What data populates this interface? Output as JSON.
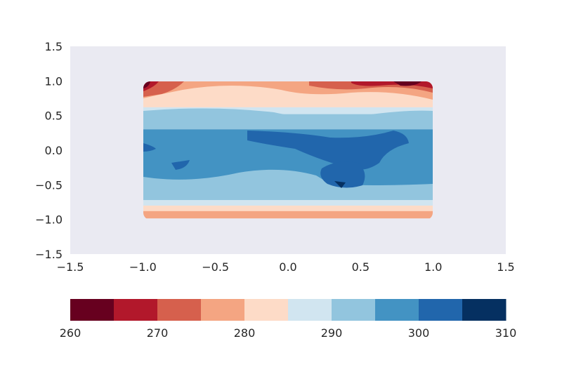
{
  "chart_data": {
    "type": "contourf",
    "title": "",
    "xlabel": "",
    "ylabel": "",
    "xlim": [
      -1.5,
      1.5
    ],
    "ylim": [
      -1.5,
      1.5
    ],
    "xticks": [
      "−1.5",
      "−1.0",
      "−0.5",
      "0.0",
      "0.5",
      "1.0",
      "1.5"
    ],
    "yticks": [
      "−1.5",
      "−1.0",
      "−0.5",
      "0.0",
      "0.5",
      "1.0",
      "1.5"
    ],
    "xtick_values": [
      -1.5,
      -1.0,
      -0.5,
      0.0,
      0.5,
      1.0,
      1.5
    ],
    "ytick_values": [
      -1.5,
      -1.0,
      -0.5,
      0.0,
      0.5,
      1.0,
      1.5
    ],
    "plot_background": "#eaeaf2",
    "grid": false,
    "levels": [
      260,
      265,
      270,
      275,
      280,
      285,
      290,
      295,
      300,
      305,
      310
    ],
    "colorbar": {
      "orientation": "horizontal",
      "ticks": [
        "260",
        "270",
        "280",
        "290",
        "300",
        "310"
      ],
      "tick_values": [
        260,
        270,
        280,
        290,
        300,
        310
      ],
      "colors": [
        "#67001f",
        "#b2182b",
        "#d6604d",
        "#f4a582",
        "#fddbc7",
        "#d1e5f0",
        "#92c5de",
        "#4393c3",
        "#2166ac",
        "#053061"
      ]
    },
    "field_bands": [
      {
        "level_range": [
          280,
          285
        ],
        "y_from": 0.97,
        "y_to": 0.62
      },
      {
        "level_range": [
          285,
          290
        ],
        "y_from": 0.62,
        "y_to": 0.52
      },
      {
        "level_range": [
          290,
          295
        ],
        "y_from": 0.52,
        "y_to": 0.3
      },
      {
        "level_range": [
          295,
          300
        ],
        "y_from": 0.3,
        "y_to": -0.62
      },
      {
        "level_range": [
          290,
          295
        ],
        "y_from": -0.62,
        "y_to": -0.72
      },
      {
        "level_range": [
          285,
          290
        ],
        "y_from": -0.72,
        "y_to": -0.8
      },
      {
        "level_range": [
          280,
          285
        ],
        "y_from": -0.8,
        "y_to": -0.88
      },
      {
        "level_range": [
          275,
          280
        ],
        "y_from": -0.88,
        "y_to": -0.98
      }
    ]
  }
}
